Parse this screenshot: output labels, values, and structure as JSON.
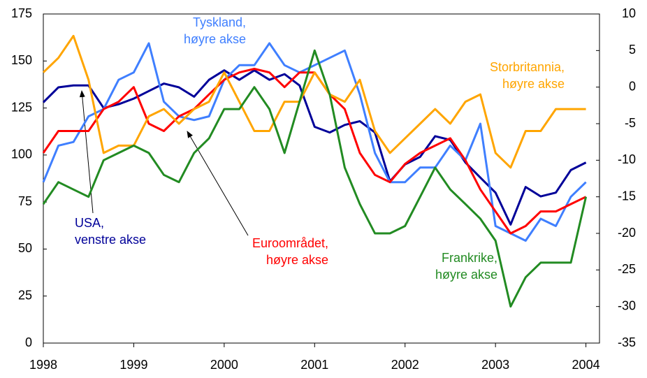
{
  "chart_data": {
    "type": "line",
    "x": [
      1998,
      1998.167,
      1998.333,
      1998.5,
      1998.667,
      1998.833,
      1999,
      1999.167,
      1999.333,
      1999.5,
      1999.667,
      1999.833,
      2000,
      2000.167,
      2000.333,
      2000.5,
      2000.667,
      2000.833,
      2001,
      2001.167,
      2001.333,
      2001.5,
      2001.667,
      2001.833,
      2002,
      2002.167,
      2002.333,
      2002.5,
      2002.667,
      2002.833,
      2003,
      2003.167,
      2003.333,
      2003.5,
      2003.667,
      2003.833,
      2004
    ],
    "xlim": [
      1998,
      2004.15
    ],
    "xticks": [
      1998,
      1999,
      2000,
      2001,
      2002,
      2003,
      2004
    ],
    "ylim": [
      0,
      175
    ],
    "yticks": [
      0,
      25,
      50,
      75,
      100,
      125,
      150,
      175
    ],
    "y2lim": [
      -35,
      10
    ],
    "y2ticks": [
      -35,
      -30,
      -25,
      -20,
      -15,
      -10,
      -5,
      0,
      5,
      10
    ],
    "grid": false,
    "series": [
      {
        "label": [
          "USA,",
          "venstre akse"
        ],
        "color": "#000099",
        "axis": "y",
        "values": [
          128,
          136,
          137,
          137,
          125,
          127,
          130,
          134,
          138,
          136,
          131,
          140,
          145,
          140,
          145,
          140,
          143,
          137,
          115,
          112,
          116,
          118,
          112,
          86,
          95,
          99,
          110,
          108,
          96,
          88,
          80,
          63,
          83,
          78,
          80,
          92,
          96
        ]
      },
      {
        "label": [
          "Tyskland,",
          "høyre akse"
        ],
        "color": "#3f7fff",
        "axis": "y2",
        "values": [
          -13,
          -8,
          -7.5,
          -4,
          -3,
          1,
          2,
          6,
          -2,
          -4,
          -4.5,
          -4,
          1,
          3,
          3,
          6,
          3,
          2,
          3,
          4,
          5,
          -1,
          -9,
          -13,
          -13,
          -11,
          -11,
          -8,
          -10,
          -5,
          -19,
          -20,
          -21,
          -18,
          -19,
          -15,
          -13
        ]
      },
      {
        "label": [
          "Euroområdet,",
          "høyre akse"
        ],
        "color": "#ff0000",
        "axis": "y2",
        "values": [
          -9,
          -6,
          -6,
          -6,
          -3,
          -2,
          0,
          -5,
          -6,
          -4,
          -3,
          -1,
          1,
          2,
          2.5,
          2,
          0,
          2,
          2,
          -1,
          -3,
          -9,
          -12,
          -13,
          -10.5,
          -9,
          -8,
          -7,
          -10,
          -14,
          -17,
          -20,
          -19,
          -17,
          -17,
          -16,
          -15
        ]
      },
      {
        "label": [
          "Storbritannia,",
          "høyre akse"
        ],
        "color": "#ffa500",
        "axis": "y2",
        "values": [
          2,
          4,
          7,
          1,
          -9,
          -8,
          -8,
          -4,
          -3,
          -5,
          -3,
          -2,
          2,
          -2,
          -6,
          -6,
          -2,
          -2,
          2,
          -1,
          -2,
          1,
          -6,
          -9,
          -7,
          -5,
          -3,
          -5,
          -2,
          -1,
          -9,
          -11,
          -6,
          -6,
          -3,
          -3,
          -3
        ]
      },
      {
        "label": [
          "Frankrike,",
          "høyre akse"
        ],
        "color": "#228b22",
        "axis": "y2",
        "values": [
          -16,
          -13,
          -14,
          -15,
          -10,
          -9,
          -8,
          -9,
          -12,
          -13,
          -9,
          -7,
          -3,
          -3,
          0,
          -3,
          -9,
          -2,
          5,
          -1,
          -11,
          -16,
          -20,
          -20,
          -19,
          -15,
          -11,
          -14,
          -16,
          -18,
          -21,
          -30,
          -26,
          -24,
          -24,
          -24,
          -15
        ]
      }
    ]
  }
}
